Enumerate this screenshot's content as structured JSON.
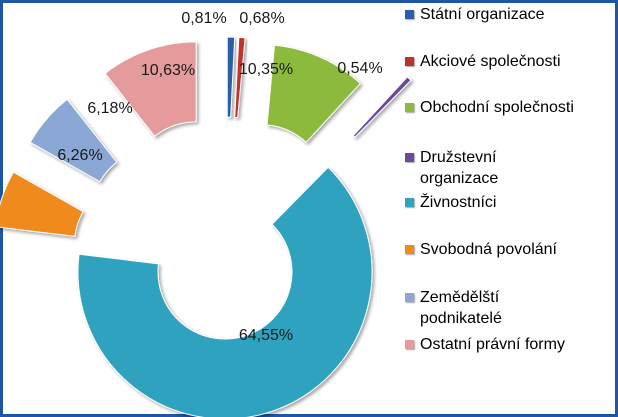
{
  "chart_data": {
    "type": "pie",
    "style": "exploded-doughnut",
    "categories": [
      "Státní organizace",
      "Akciové společnosti",
      "Obchodní společnosti",
      "Družstevní organizace",
      "Živnostníci",
      "Svobodná povolání",
      "Zemědělští podnikatelé",
      "Ostatní právní formy"
    ],
    "legend_lines": [
      [
        "Státní organizace"
      ],
      [
        "Akciové společnosti"
      ],
      [
        "Obchodní společnosti"
      ],
      [
        "Družstevní",
        "organizace"
      ],
      [
        "Živnostníci"
      ],
      [
        "Svobodná povolání"
      ],
      [
        "Zemědělští",
        "podnikatelé"
      ],
      [
        "Ostatní právní formy"
      ]
    ],
    "values": [
      0.81,
      0.68,
      10.35,
      0.54,
      64.55,
      6.26,
      6.18,
      10.63
    ],
    "labels": [
      "0,81%",
      "0,68%",
      "10,35%",
      "0,54%",
      "64,55%",
      "6,26%",
      "6,18%",
      "10,63%"
    ],
    "colors": [
      "#2a5fa8",
      "#c0302c",
      "#8cba3c",
      "#6b4a97",
      "#2ea2bf",
      "#f08a1e",
      "#8aa7d6",
      "#e59b9b"
    ],
    "legend_position": "right"
  }
}
